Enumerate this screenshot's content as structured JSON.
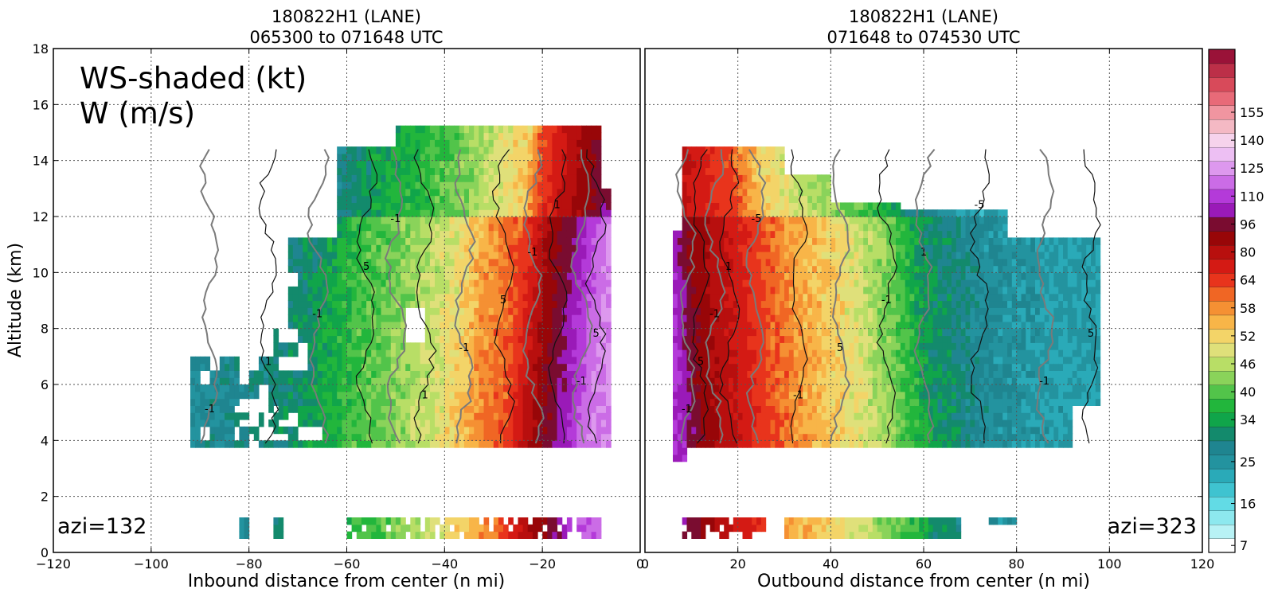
{
  "figure": {
    "colorbar": {
      "tick_labels": [
        "7",
        "16",
        "25",
        "34",
        "40",
        "46",
        "52",
        "58",
        "64",
        "80",
        "96",
        "110",
        "125",
        "140",
        "155"
      ],
      "levels": [
        7,
        10,
        13,
        16,
        19,
        22,
        25,
        28,
        31,
        34,
        37,
        40,
        43,
        46,
        49,
        52,
        55,
        58,
        61,
        64,
        72,
        80,
        88,
        96,
        103,
        110,
        117,
        125,
        132,
        140,
        147,
        155,
        162
      ],
      "colors": [
        "#ffffff",
        "#b8f2f5",
        "#8de8ee",
        "#62dbe5",
        "#3fc3d0",
        "#2aaab8",
        "#23939f",
        "#1f8590",
        "#138a6c",
        "#10a54a",
        "#22b63c",
        "#52c44a",
        "#8ad35a",
        "#b8de66",
        "#dfe07a",
        "#f3d468",
        "#f8b548",
        "#f59033",
        "#f06624",
        "#e8341c",
        "#d41a14",
        "#b80f0e",
        "#980608",
        "#7a0c30",
        "#9a1ab8",
        "#b43ad9",
        "#cb6ce6",
        "#dd98ee",
        "#edbff3",
        "#f6d3ec",
        "#f4b9c4",
        "#f095a0",
        "#e86a78",
        "#d84a5a",
        "#bc2f48",
        "#9a1238"
      ]
    }
  },
  "chart_data": [
    {
      "type": "heatmap",
      "title": "180822H1 (LANE)",
      "subtitle": "065300 to 071648 UTC",
      "xlabel": "Inbound distance from center (n mi)",
      "ylabel": "Altitude (km)",
      "xlim": [
        -120,
        0
      ],
      "ylim": [
        0,
        18
      ],
      "xticks": [
        "−120",
        "−100",
        "−80",
        "−60",
        "−40",
        "−20",
        "0"
      ],
      "yticks": [
        "0",
        "2",
        "4",
        "6",
        "8",
        "10",
        "12",
        "14",
        "16",
        "18"
      ],
      "grid": true,
      "annotations": [
        "WS-shaded (kt)",
        "W (m/s)",
        "azi=132"
      ],
      "shaded_variable": "wind speed (kt)",
      "contour_variable": "vertical velocity W (m/s)",
      "contour_labels": [
        "1",
        "-1",
        "5",
        "-5"
      ],
      "wind_speed_profile_kt": [
        {
          "x": -90,
          "value": 28
        },
        {
          "x": -80,
          "value": 30
        },
        {
          "x": -70,
          "value": 33
        },
        {
          "x": -60,
          "value": 40
        },
        {
          "x": -50,
          "value": 45
        },
        {
          "x": -40,
          "value": 52
        },
        {
          "x": -35,
          "value": 58
        },
        {
          "x": -28,
          "value": 64
        },
        {
          "x": -22,
          "value": 90
        },
        {
          "x": -15,
          "value": 110
        },
        {
          "x": -10,
          "value": 125
        }
      ]
    },
    {
      "type": "heatmap",
      "title": "180822H1 (LANE)",
      "subtitle": "071648 to 074530 UTC",
      "xlabel": "Outbound distance from center (n mi)",
      "ylabel": "",
      "xlim": [
        0,
        120
      ],
      "ylim": [
        0,
        18
      ],
      "xticks": [
        "0",
        "20",
        "40",
        "60",
        "80",
        "100",
        "120"
      ],
      "yticks": [],
      "grid": true,
      "annotations": [
        "azi=323"
      ],
      "contour_labels": [
        "1",
        "-1",
        "5",
        "-5"
      ],
      "wind_speed_profile_kt": [
        {
          "x": 8,
          "value": 110
        },
        {
          "x": 12,
          "value": 96
        },
        {
          "x": 20,
          "value": 80
        },
        {
          "x": 28,
          "value": 64
        },
        {
          "x": 35,
          "value": 58
        },
        {
          "x": 45,
          "value": 52
        },
        {
          "x": 55,
          "value": 43
        },
        {
          "x": 62,
          "value": 34
        },
        {
          "x": 75,
          "value": 28
        },
        {
          "x": 90,
          "value": 25
        },
        {
          "x": 98,
          "value": 25
        }
      ]
    }
  ]
}
